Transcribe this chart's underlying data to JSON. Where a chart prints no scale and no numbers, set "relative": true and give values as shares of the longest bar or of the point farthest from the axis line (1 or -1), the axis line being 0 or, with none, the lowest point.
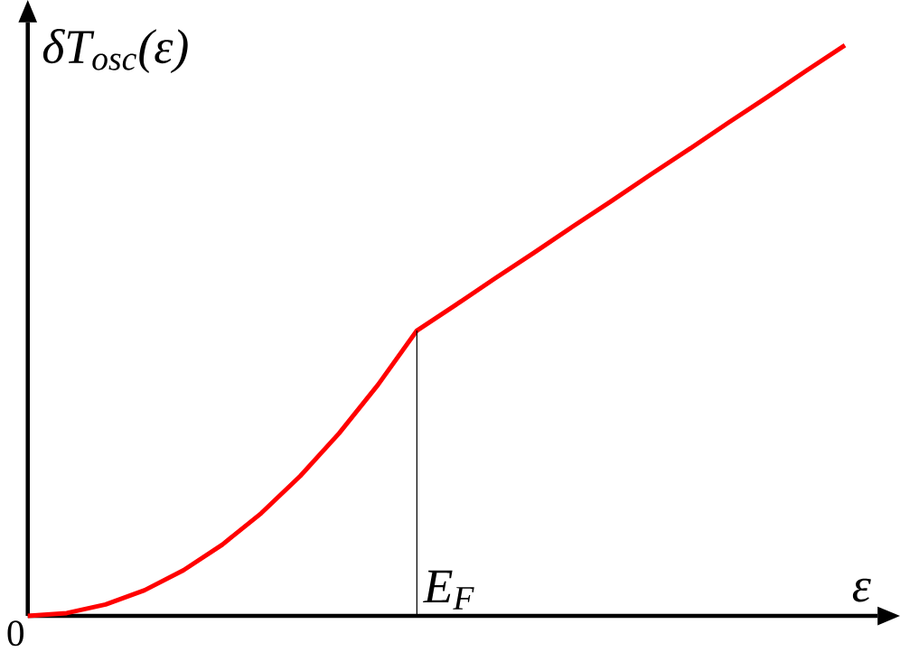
{
  "chart_data": {
    "type": "line",
    "relative": true,
    "xlabel": "ε",
    "ylabel": "δT$_{osc}$(ε)",
    "categories": [
      null,
      null,
      null,
      null,
      null,
      null,
      null,
      null,
      null,
      null,
      null,
      null,
      null,
      null,
      null,
      null,
      null,
      null,
      null,
      null,
      null,
      null
    ],
    "series": [
      {
        "color": "#ff0000",
        "values": [
          0,
          0.005,
          0.02,
          0.045,
          0.08,
          0.125,
          0.18,
          0.245,
          0.32,
          0.405,
          0.5,
          0.545,
          0.591,
          0.636,
          0.682,
          0.727,
          0.773,
          0.818,
          0.864,
          0.909,
          0.955,
          1.0
        ]
      }
    ],
    "annotations": [
      "0",
      "E$_{F}$"
    ],
    "marker": "none",
    "line_style": "solid"
  }
}
